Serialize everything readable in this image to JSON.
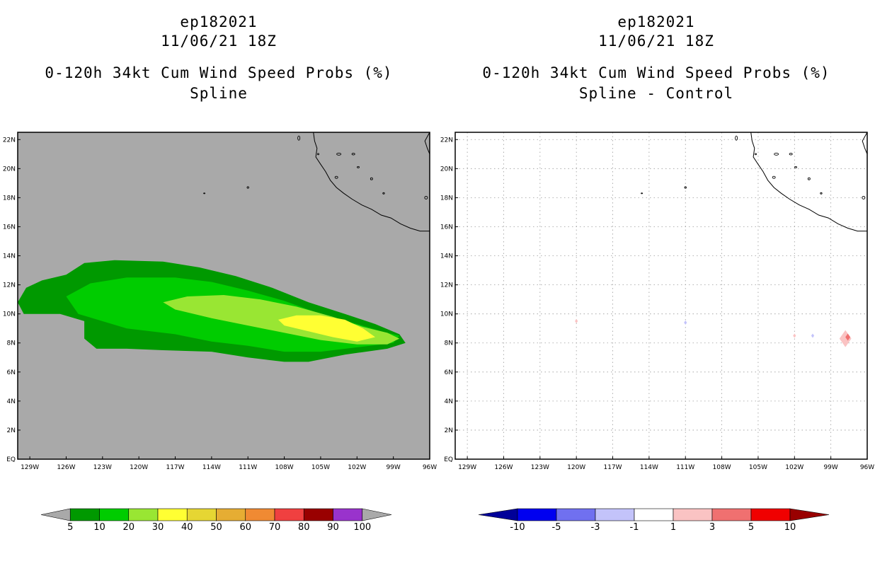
{
  "panels": [
    {
      "storm_id": "ep182021",
      "date": "11/06/21 18Z",
      "product": "0-120h 34kt Cum Wind Speed Probs (%)",
      "method": "Spline"
    },
    {
      "storm_id": "ep182021",
      "date": "11/06/21 18Z",
      "product": "0-120h 34kt Cum Wind Speed Probs (%)",
      "method": "Spline - Control"
    }
  ],
  "chart_data": [
    {
      "type": "heatmap",
      "title": "0-120h 34kt Cum Wind Speed Probs (%) — Spline",
      "x_ticks": [
        "129W",
        "126W",
        "123W",
        "120W",
        "117W",
        "114W",
        "111W",
        "108W",
        "105W",
        "102W",
        "99W",
        "96W"
      ],
      "y_ticks": [
        "EQ",
        "2N",
        "4N",
        "6N",
        "8N",
        "10N",
        "12N",
        "14N",
        "16N",
        "18N",
        "20N",
        "22N"
      ],
      "xlim_deg_w": [
        130,
        96
      ],
      "ylim_deg_n": [
        0,
        22.5
      ],
      "background_color": "#a9a9a9",
      "grid": false,
      "contours": [
        {
          "level": 5,
          "color": "#009900",
          "polygon": [
            [
              130,
              10.8
            ],
            [
              129.3,
              11.8
            ],
            [
              128,
              12.3
            ],
            [
              126,
              12.7
            ],
            [
              124.5,
              13.5
            ],
            [
              122,
              13.7
            ],
            [
              118,
              13.6
            ],
            [
              115,
              13.2
            ],
            [
              112,
              12.6
            ],
            [
              109,
              11.8
            ],
            [
              106,
              10.8
            ],
            [
              103,
              10
            ],
            [
              100.5,
              9.3
            ],
            [
              98.5,
              8.6
            ],
            [
              98,
              8
            ],
            [
              99.5,
              7.6
            ],
            [
              103,
              7.2
            ],
            [
              106,
              6.7
            ],
            [
              108,
              6.7
            ],
            [
              111,
              7.0
            ],
            [
              114,
              7.4
            ],
            [
              118,
              7.5
            ],
            [
              121,
              7.6
            ],
            [
              123.5,
              7.6
            ],
            [
              124.5,
              8.3
            ],
            [
              124.5,
              9.5
            ],
            [
              126.5,
              10.0
            ],
            [
              129.5,
              10.0
            ]
          ]
        },
        {
          "level": 10,
          "color": "#00cc00",
          "polygon": [
            [
              126,
              11.2
            ],
            [
              124,
              12.1
            ],
            [
              121,
              12.5
            ],
            [
              117,
              12.5
            ],
            [
              114,
              12.2
            ],
            [
              111,
              11.6
            ],
            [
              108,
              10.9
            ],
            [
              105,
              10.0
            ],
            [
              102,
              9.3
            ],
            [
              100,
              8.8
            ],
            [
              98.5,
              8.5
            ],
            [
              99,
              8.0
            ],
            [
              102,
              7.7
            ],
            [
              105,
              7.4
            ],
            [
              108,
              7.4
            ],
            [
              111,
              7.8
            ],
            [
              114,
              8.1
            ],
            [
              117,
              8.6
            ],
            [
              121,
              9.0
            ],
            [
              125,
              10.0
            ]
          ]
        },
        {
          "level": 20,
          "color": "#99e633",
          "polygon": [
            [
              118,
              10.8
            ],
            [
              116,
              11.2
            ],
            [
              113,
              11.3
            ],
            [
              110,
              11.0
            ],
            [
              107,
              10.5
            ],
            [
              104,
              9.8
            ],
            [
              101.5,
              9.1
            ],
            [
              99.5,
              8.7
            ],
            [
              98.5,
              8.3
            ],
            [
              99.5,
              7.9
            ],
            [
              102,
              7.9
            ],
            [
              105,
              8.2
            ],
            [
              108,
              8.7
            ],
            [
              111,
              9.2
            ],
            [
              114,
              9.7
            ],
            [
              117,
              10.3
            ]
          ]
        },
        {
          "level": 30,
          "color": "#ffff33",
          "polygon": [
            [
              105,
              9.9
            ],
            [
              103,
              9.6
            ],
            [
              101.5,
              9.0
            ],
            [
              100.5,
              8.4
            ],
            [
              102,
              8.1
            ],
            [
              104,
              8.4
            ],
            [
              106,
              8.8
            ],
            [
              108,
              9.2
            ],
            [
              108.5,
              9.6
            ],
            [
              107,
              9.9
            ]
          ]
        }
      ],
      "colorbar": {
        "levels": [
          "5",
          "10",
          "20",
          "30",
          "40",
          "50",
          "60",
          "70",
          "80",
          "90",
          "100"
        ],
        "colors": [
          "#a9a9a9",
          "#009900",
          "#00cc00",
          "#99e633",
          "#ffff33",
          "#e6d633",
          "#e6ad33",
          "#f08a33",
          "#f04040",
          "#990000",
          "#9933cc",
          "#a9a9a9"
        ]
      }
    },
    {
      "type": "heatmap",
      "title": "0-120h 34kt Cum Wind Speed Probs (%) — Spline - Control",
      "x_ticks": [
        "129W",
        "126W",
        "123W",
        "120W",
        "117W",
        "114W",
        "111W",
        "108W",
        "105W",
        "102W",
        "99W",
        "96W"
      ],
      "y_ticks": [
        "EQ",
        "2N",
        "4N",
        "6N",
        "8N",
        "10N",
        "12N",
        "14N",
        "16N",
        "18N",
        "20N",
        "22N"
      ],
      "xlim_deg_w": [
        130,
        96
      ],
      "ylim_deg_n": [
        0,
        22.5
      ],
      "background_color": "#ffffff",
      "grid": true,
      "spots": [
        {
          "lon_w": 120.0,
          "lat_n": 9.5,
          "level": 1,
          "color": "#fac3c3"
        },
        {
          "lon_w": 111.0,
          "lat_n": 9.4,
          "level": -1,
          "color": "#c3c3fa"
        },
        {
          "lon_w": 102.0,
          "lat_n": 8.5,
          "level": 1,
          "color": "#fac3c3"
        },
        {
          "lon_w": 100.5,
          "lat_n": 8.5,
          "level": -1,
          "color": "#c3c3fa"
        },
        {
          "lon_w": 97.8,
          "lat_n": 8.3,
          "level": 1,
          "color": "#fac3c3"
        },
        {
          "lon_w": 97.6,
          "lat_n": 8.4,
          "level": 3,
          "color": "#f07070"
        }
      ],
      "colorbar": {
        "levels": [
          "-10",
          "-5",
          "-3",
          "-1",
          "1",
          "3",
          "5",
          "10"
        ],
        "colors": [
          "#000099",
          "#0000f0",
          "#7070f0",
          "#c3c3fa",
          "#ffffff",
          "#fac3c3",
          "#f07070",
          "#f00000",
          "#990000"
        ]
      }
    }
  ]
}
